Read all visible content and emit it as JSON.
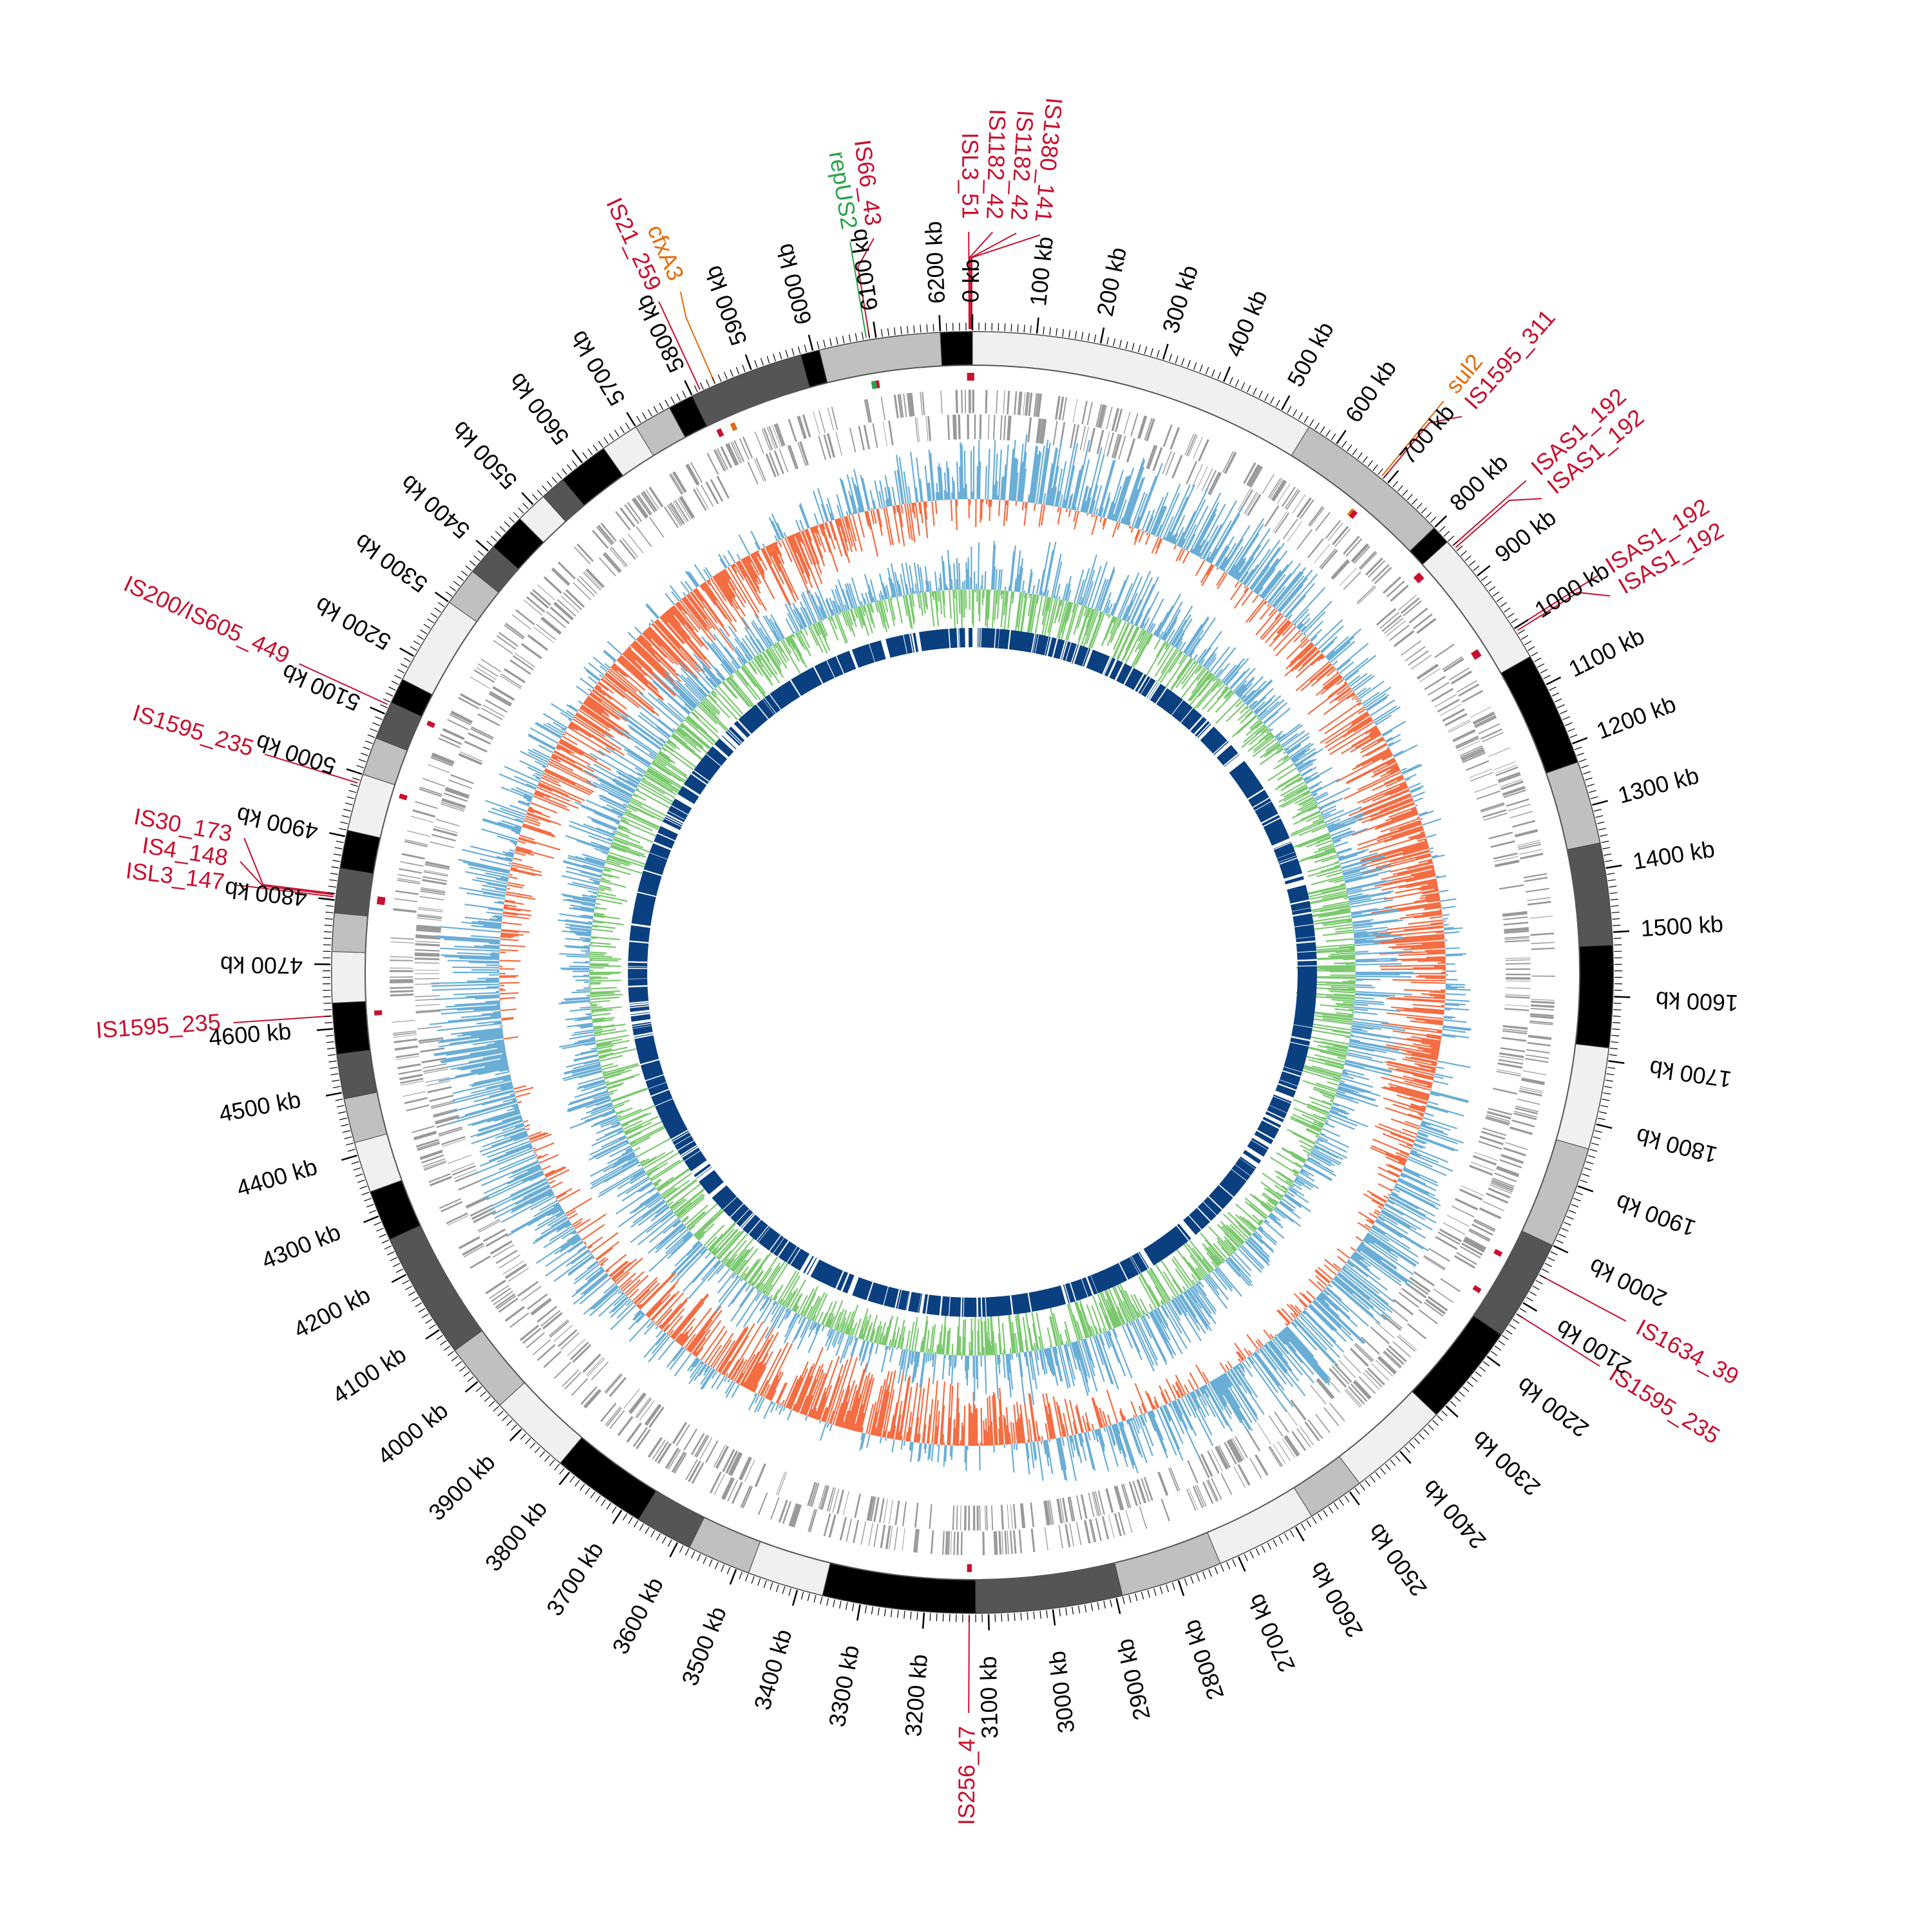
{
  "genome": {
    "length_kb": 6250,
    "tick_unit": "kb",
    "label_step_kb": 100,
    "ticks": [
      0,
      100,
      200,
      300,
      400,
      500,
      600,
      700,
      800,
      900,
      1000,
      1100,
      1200,
      1300,
      1400,
      1500,
      1600,
      1700,
      1800,
      1900,
      2000,
      2100,
      2200,
      2300,
      2400,
      2500,
      2600,
      2700,
      2800,
      2900,
      3000,
      3100,
      3200,
      3300,
      3400,
      3500,
      3600,
      3700,
      3800,
      3900,
      4000,
      4100,
      4200,
      4300,
      4400,
      4500,
      4600,
      4700,
      4800,
      4900,
      5000,
      5100,
      5200,
      5300,
      5400,
      5500,
      5600,
      5700,
      5800,
      5900,
      6000,
      6100,
      6200
    ]
  },
  "colors": {
    "is_element": "#c8102e",
    "resistance_gene": "#e36c0a",
    "replicon": "#2aa34a",
    "gc_content_positive": "#6aaed6",
    "gc_content_negative": "#f46d43",
    "gc_skew_positive": "#6aaed6",
    "gc_skew_negative": "#7bc96f",
    "orf_track": "#999999",
    "homology_track": "#0b4080"
  },
  "contig_band": {
    "segments": [
      {
        "start": 0,
        "end": 550,
        "shade": "#f0f0f0"
      },
      {
        "start": 550,
        "end": 800,
        "shade": "#c0c0c0"
      },
      {
        "start": 800,
        "end": 830,
        "shade": "#000000"
      },
      {
        "start": 830,
        "end": 1050,
        "shade": "#f0f0f0"
      },
      {
        "start": 1050,
        "end": 1230,
        "shade": "#000000"
      },
      {
        "start": 1230,
        "end": 1360,
        "shade": "#c0c0c0"
      },
      {
        "start": 1360,
        "end": 1520,
        "shade": "#555555"
      },
      {
        "start": 1520,
        "end": 1680,
        "shade": "#000000"
      },
      {
        "start": 1680,
        "end": 1840,
        "shade": "#f0f0f0"
      },
      {
        "start": 1840,
        "end": 2000,
        "shade": "#c0c0c0"
      },
      {
        "start": 2000,
        "end": 2160,
        "shade": "#555555"
      },
      {
        "start": 2160,
        "end": 2320,
        "shade": "#000000"
      },
      {
        "start": 2320,
        "end": 2480,
        "shade": "#f0f0f0"
      },
      {
        "start": 2480,
        "end": 2570,
        "shade": "#c0c0c0"
      },
      {
        "start": 2570,
        "end": 2730,
        "shade": "#f0f0f0"
      },
      {
        "start": 2730,
        "end": 2890,
        "shade": "#c0c0c0"
      },
      {
        "start": 2890,
        "end": 3120,
        "shade": "#555555"
      },
      {
        "start": 3120,
        "end": 3360,
        "shade": "#000000"
      },
      {
        "start": 3360,
        "end": 3480,
        "shade": "#f0f0f0"
      },
      {
        "start": 3480,
        "end": 3580,
        "shade": "#c0c0c0"
      },
      {
        "start": 3580,
        "end": 3670,
        "shade": "#555555"
      },
      {
        "start": 3670,
        "end": 3820,
        "shade": "#000000"
      },
      {
        "start": 3820,
        "end": 3950,
        "shade": "#f0f0f0"
      },
      {
        "start": 3950,
        "end": 4060,
        "shade": "#c0c0c0"
      },
      {
        "start": 4060,
        "end": 4260,
        "shade": "#555555"
      },
      {
        "start": 4260,
        "end": 4340,
        "shade": "#000000"
      },
      {
        "start": 4340,
        "end": 4420,
        "shade": "#f0f0f0"
      },
      {
        "start": 4420,
        "end": 4490,
        "shade": "#c0c0c0"
      },
      {
        "start": 4490,
        "end": 4560,
        "shade": "#555555"
      },
      {
        "start": 4560,
        "end": 4640,
        "shade": "#000000"
      },
      {
        "start": 4640,
        "end": 4720,
        "shade": "#f0f0f0"
      },
      {
        "start": 4720,
        "end": 4780,
        "shade": "#c0c0c0"
      },
      {
        "start": 4780,
        "end": 4850,
        "shade": "#555555"
      },
      {
        "start": 4850,
        "end": 4910,
        "shade": "#000000"
      },
      {
        "start": 4910,
        "end": 5000,
        "shade": "#f0f0f0"
      },
      {
        "start": 5000,
        "end": 5060,
        "shade": "#c0c0c0"
      },
      {
        "start": 5060,
        "end": 5120,
        "shade": "#555555"
      },
      {
        "start": 5120,
        "end": 5160,
        "shade": "#000000"
      },
      {
        "start": 5160,
        "end": 5300,
        "shade": "#f0f0f0"
      },
      {
        "start": 5300,
        "end": 5360,
        "shade": "#c0c0c0"
      },
      {
        "start": 5360,
        "end": 5410,
        "shade": "#555555"
      },
      {
        "start": 5410,
        "end": 5470,
        "shade": "#000000"
      },
      {
        "start": 5470,
        "end": 5520,
        "shade": "#f0f0f0"
      },
      {
        "start": 5520,
        "end": 5560,
        "shade": "#555555"
      },
      {
        "start": 5560,
        "end": 5640,
        "shade": "#000000"
      },
      {
        "start": 5640,
        "end": 5700,
        "shade": "#f0f0f0"
      },
      {
        "start": 5700,
        "end": 5760,
        "shade": "#c0c0c0"
      },
      {
        "start": 5760,
        "end": 5800,
        "shade": "#000000"
      },
      {
        "start": 5800,
        "end": 5980,
        "shade": "#555555"
      },
      {
        "start": 5980,
        "end": 6010,
        "shade": "#000000"
      },
      {
        "start": 6010,
        "end": 6200,
        "shade": "#c0c0c0"
      },
      {
        "start": 6200,
        "end": 6250,
        "shade": "#000000"
      }
    ]
  },
  "features": [
    {
      "text": "IS1182_42",
      "pos": 6248,
      "type": "is_element",
      "dir": "out"
    },
    {
      "text": "IS1380_141",
      "pos": 6249,
      "type": "is_element",
      "dir": "out"
    },
    {
      "text": "IS1182_42",
      "pos": 6246,
      "type": "is_element",
      "dir": "out"
    },
    {
      "text": "ISL3_51",
      "pos": 6245,
      "type": "is_element",
      "dir": "out"
    },
    {
      "text": "IS66_43",
      "pos": 6090,
      "type": "is_element",
      "dir": "out"
    },
    {
      "text": "repUS2",
      "pos": 6085,
      "type": "replicon",
      "dir": "out"
    },
    {
      "text": "cfxA3",
      "pos": 5840,
      "type": "resistance_gene",
      "dir": "out"
    },
    {
      "text": "IS21_259",
      "pos": 5815,
      "type": "is_element",
      "dir": "out"
    },
    {
      "text": "sul2",
      "pos": 686,
      "type": "resistance_gene",
      "dir": "out"
    },
    {
      "text": "IS1595_311",
      "pos": 690,
      "type": "is_element",
      "dir": "out"
    },
    {
      "text": "ISAS1_192",
      "pos": 840,
      "type": "is_element",
      "dir": "out"
    },
    {
      "text": "ISAS1_192",
      "pos": 845,
      "type": "is_element",
      "dir": "out"
    },
    {
      "text": "ISAS1_192",
      "pos": 1000,
      "type": "is_element",
      "dir": "out"
    },
    {
      "text": "ISAS1_192",
      "pos": 1005,
      "type": "is_element",
      "dir": "out"
    },
    {
      "text": "IS1634_39",
      "pos": 2050,
      "type": "is_element",
      "dir": "out"
    },
    {
      "text": "IS1595_235",
      "pos": 2120,
      "type": "is_element",
      "dir": "out"
    },
    {
      "text": "IS256_47",
      "pos": 3130,
      "type": "is_element",
      "dir": "out"
    },
    {
      "text": "IS1595_235",
      "pos": 4620,
      "type": "is_element",
      "dir": "out"
    },
    {
      "text": "ISL3_147",
      "pos": 4805,
      "type": "is_element",
      "dir": "out"
    },
    {
      "text": "IS4_148",
      "pos": 4808,
      "type": "is_element",
      "dir": "out"
    },
    {
      "text": "IS30_173",
      "pos": 4810,
      "type": "is_element",
      "dir": "out"
    },
    {
      "text": "IS1595_235",
      "pos": 4985,
      "type": "is_element",
      "dir": "out"
    },
    {
      "text": "IS200/IS605_449",
      "pos": 5115,
      "type": "is_element",
      "dir": "out"
    }
  ]
}
